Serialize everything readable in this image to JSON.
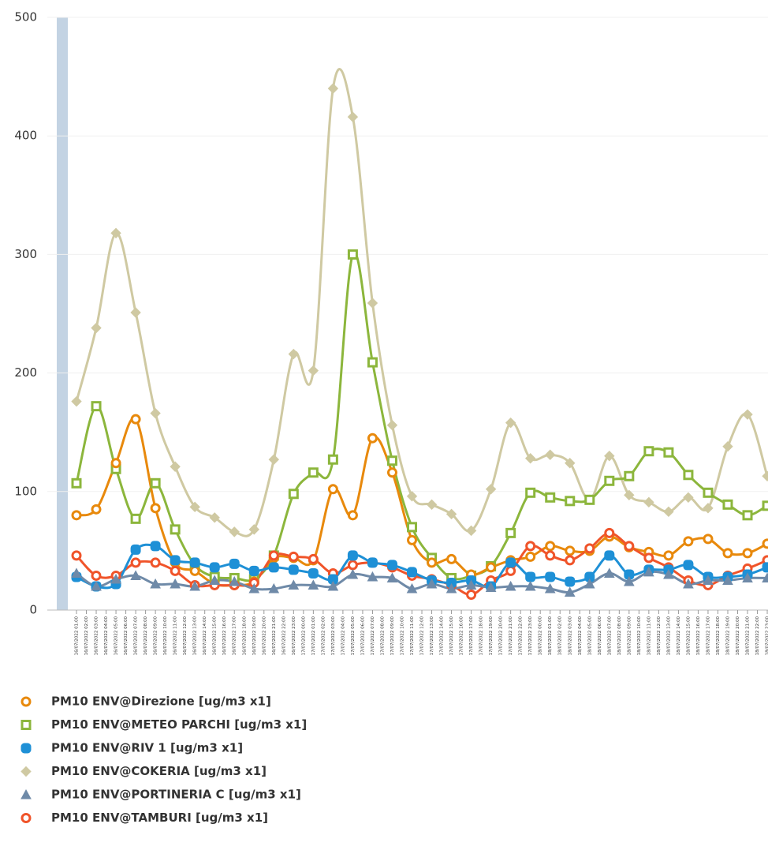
{
  "chart_data": {
    "type": "line",
    "categories": [
      "16/07/2022 01:00",
      "16/07/2022 03:00",
      "16/07/2022 05:00",
      "16/07/2022 07:00",
      "16/07/2022 09:00",
      "16/07/2022 11:00",
      "16/07/2022 13:00",
      "16/07/2022 15:00",
      "16/07/2022 17:00",
      "16/07/2022 19:00",
      "16/07/2022 21:00",
      "16/07/2022 23:00",
      "17/07/2022 01:00",
      "17/07/2022 03:00",
      "17/07/2022 05:00",
      "17/07/2022 07:00",
      "17/07/2022 09:00",
      "17/07/2022 11:00",
      "17/07/2022 13:00",
      "17/07/2022 15:00",
      "17/07/2022 17:00",
      "17/07/2022 19:00",
      "17/07/2022 21:00",
      "17/07/2022 23:00",
      "18/07/2022 01:00",
      "18/07/2022 03:00",
      "18/07/2022 05:00",
      "18/07/2022 07:00",
      "18/07/2022 09:00",
      "18/07/2022 11:00",
      "18/07/2022 13:00",
      "18/07/2022 15:00",
      "18/07/2022 17:00",
      "18/07/2022 19:00",
      "18/07/2022 21:00",
      "18/07/2022 23:00"
    ],
    "xticks": [
      "16/07/2022 01:00",
      "16/07/2022 02:00",
      "16/07/2022 03:00",
      "16/07/2022 04:00",
      "16/07/2022 05:00",
      "16/07/2022 06:00",
      "16/07/2022 07:00",
      "16/07/2022 08:00",
      "16/07/2022 09:00",
      "16/07/2022 10:00",
      "16/07/2022 11:00",
      "16/07/2022 12:00",
      "16/07/2022 13:00",
      "16/07/2022 14:00",
      "16/07/2022 15:00",
      "16/07/2022 16:00",
      "16/07/2022 17:00",
      "16/07/2022 18:00",
      "16/07/2022 19:00",
      "16/07/2022 20:00",
      "16/07/2022 21:00",
      "16/07/2022 22:00",
      "16/07/2022 23:00",
      "17/07/2022 00:00",
      "17/07/2022 01:00",
      "17/07/2022 02:00",
      "17/07/2022 03:00",
      "17/07/2022 04:00",
      "17/07/2022 05:00",
      "17/07/2022 06:00",
      "17/07/2022 07:00",
      "17/07/2022 08:00",
      "17/07/2022 09:00",
      "17/07/2022 10:00",
      "17/07/2022 11:00",
      "17/07/2022 12:00",
      "17/07/2022 13:00",
      "17/07/2022 14:00",
      "17/07/2022 15:00",
      "17/07/2022 16:00",
      "17/07/2022 17:00",
      "17/07/2022 18:00",
      "17/07/2022 19:00",
      "17/07/2022 20:00",
      "17/07/2022 21:00",
      "17/07/2022 22:00",
      "17/07/2022 23:00",
      "18/07/2022 00:00",
      "18/07/2022 01:00",
      "18/07/2022 02:00",
      "18/07/2022 03:00",
      "18/07/2022 04:00",
      "18/07/2022 05:00",
      "18/07/2022 06:00",
      "18/07/2022 07:00",
      "18/07/2022 08:00",
      "18/07/2022 09:00",
      "18/07/2022 10:00",
      "18/07/2022 11:00",
      "18/07/2022 12:00",
      "18/07/2022 13:00",
      "18/07/2022 14:00",
      "18/07/2022 15:00",
      "18/07/2022 16:00",
      "18/07/2022 17:00",
      "18/07/2022 18:00",
      "18/07/2022 19:00",
      "18/07/2022 20:00",
      "18/07/2022 21:00",
      "18/07/2022 22:00",
      "18/07/2022 23:00"
    ],
    "ylim": [
      0,
      500
    ],
    "yticks": [
      0,
      100,
      200,
      300,
      400,
      500
    ],
    "grid": true,
    "series": [
      {
        "name": "PM10 ENV@Direzione [ug/m3 x1]",
        "color": "#e8890c",
        "marker": "circle",
        "values": [
          80,
          85,
          124,
          161,
          86,
          40,
          33,
          22,
          21,
          24,
          44,
          44,
          42,
          102,
          80,
          145,
          116,
          59,
          40,
          43,
          30,
          36,
          42,
          45,
          54,
          50,
          50,
          62,
          53,
          49,
          46,
          58,
          60,
          48,
          48,
          56
        ]
      },
      {
        "name": "PM10 ENV@METEO PARCHI [ug/m3 x1]",
        "color": "#8cb63c",
        "marker": "square",
        "values": [
          107,
          172,
          119,
          77,
          107,
          68,
          38,
          28,
          27,
          26,
          46,
          98,
          116,
          127,
          300,
          209,
          126,
          70,
          44,
          27,
          29,
          37,
          65,
          99,
          95,
          92,
          93,
          109,
          113,
          134,
          133,
          114,
          99,
          89,
          80,
          88
        ]
      },
      {
        "name": "PM10 ENV@RIV 1 [ug/m3 x1]",
        "color": "#1e90d6",
        "marker": "plus",
        "values": [
          28,
          20,
          22,
          51,
          54,
          42,
          40,
          36,
          39,
          33,
          36,
          34,
          31,
          26,
          46,
          40,
          38,
          32,
          25,
          23,
          25,
          20,
          40,
          28,
          28,
          24,
          28,
          46,
          30,
          34,
          34,
          38,
          28,
          28,
          30,
          36
        ]
      },
      {
        "name": "PM10 ENV@COKERIA [ug/m3 x1]",
        "color": "#cfc9a2",
        "marker": "diamond",
        "values": [
          176,
          238,
          318,
          251,
          166,
          121,
          87,
          78,
          66,
          68,
          127,
          216,
          202,
          440,
          416,
          259,
          156,
          96,
          89,
          81,
          67,
          102,
          158,
          128,
          131,
          124,
          93,
          130,
          97,
          91,
          83,
          95,
          86,
          138,
          165,
          113
        ]
      },
      {
        "name": "PM10 ENV@PORTINERIA C [ug/m3 x1]",
        "color": "#6f8aa8",
        "marker": "triangle",
        "values": [
          31,
          20,
          26,
          29,
          22,
          22,
          20,
          25,
          24,
          18,
          18,
          21,
          21,
          20,
          30,
          28,
          27,
          18,
          22,
          18,
          21,
          19,
          20,
          20,
          18,
          15,
          22,
          31,
          24,
          32,
          30,
          22,
          25,
          25,
          27,
          27
        ]
      },
      {
        "name": "PM10 ENV@TAMBURI [ug/m3 x1]",
        "color": "#f0542a",
        "marker": "circle",
        "values": [
          46,
          29,
          29,
          40,
          40,
          33,
          21,
          21,
          21,
          23,
          46,
          45,
          43,
          31,
          38,
          40,
          36,
          29,
          26,
          21,
          13,
          25,
          33,
          54,
          46,
          42,
          52,
          65,
          54,
          44,
          36,
          25,
          21,
          29,
          35,
          42
        ]
      }
    ]
  }
}
